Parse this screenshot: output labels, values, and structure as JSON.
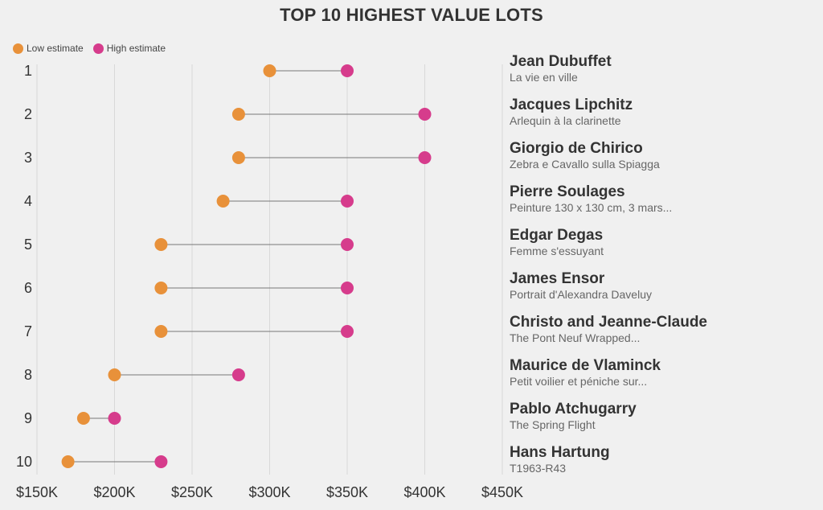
{
  "chart_data": {
    "type": "dumbbell",
    "title": "TOP 10 HIGHEST VALUE LOTS",
    "legend": [
      {
        "label": "Low estimate",
        "color": "#e8913a"
      },
      {
        "label": "High estimate",
        "color": "#d63c8c"
      }
    ],
    "xlim": [
      150000,
      450000
    ],
    "xticks": [
      {
        "value": 150000,
        "label": "$150K"
      },
      {
        "value": 200000,
        "label": "$200K"
      },
      {
        "value": 250000,
        "label": "$250K"
      },
      {
        "value": 300000,
        "label": "$300K"
      },
      {
        "value": 350000,
        "label": "$350K"
      },
      {
        "value": 400000,
        "label": "$400K"
      },
      {
        "value": 450000,
        "label": "$450K"
      }
    ],
    "lots": [
      {
        "rank": "1",
        "artist": "Jean Dubuffet",
        "work": "La vie en ville",
        "low": 300000,
        "high": 350000
      },
      {
        "rank": "2",
        "artist": "Jacques Lipchitz",
        "work": "Arlequin à la clarinette",
        "low": 280000,
        "high": 400000
      },
      {
        "rank": "3",
        "artist": "Giorgio de Chirico",
        "work": "Zebra e Cavallo sulla Spiagga",
        "low": 280000,
        "high": 400000
      },
      {
        "rank": "4",
        "artist": "Pierre Soulages",
        "work": "Peinture 130 x 130 cm, 3 mars...",
        "low": 270000,
        "high": 350000
      },
      {
        "rank": "5",
        "artist": "Edgar Degas",
        "work": "Femme s'essuyant",
        "low": 230000,
        "high": 350000
      },
      {
        "rank": "6",
        "artist": "James Ensor",
        "work": "Portrait d'Alexandra Daveluy",
        "low": 230000,
        "high": 350000
      },
      {
        "rank": "7",
        "artist": "Christo and Jeanne-Claude",
        "work": "The Pont Neuf Wrapped...",
        "low": 230000,
        "high": 350000
      },
      {
        "rank": "8",
        "artist": "Maurice de Vlaminck",
        "work": "Petit voilier et péniche sur...",
        "low": 200000,
        "high": 280000
      },
      {
        "rank": "9",
        "artist": "Pablo Atchugarry",
        "work": "The Spring Flight",
        "low": 180000,
        "high": 200000
      },
      {
        "rank": "10",
        "artist": "Hans Hartung",
        "work": "T1963-R43",
        "low": 170000,
        "high": 230000
      }
    ]
  }
}
